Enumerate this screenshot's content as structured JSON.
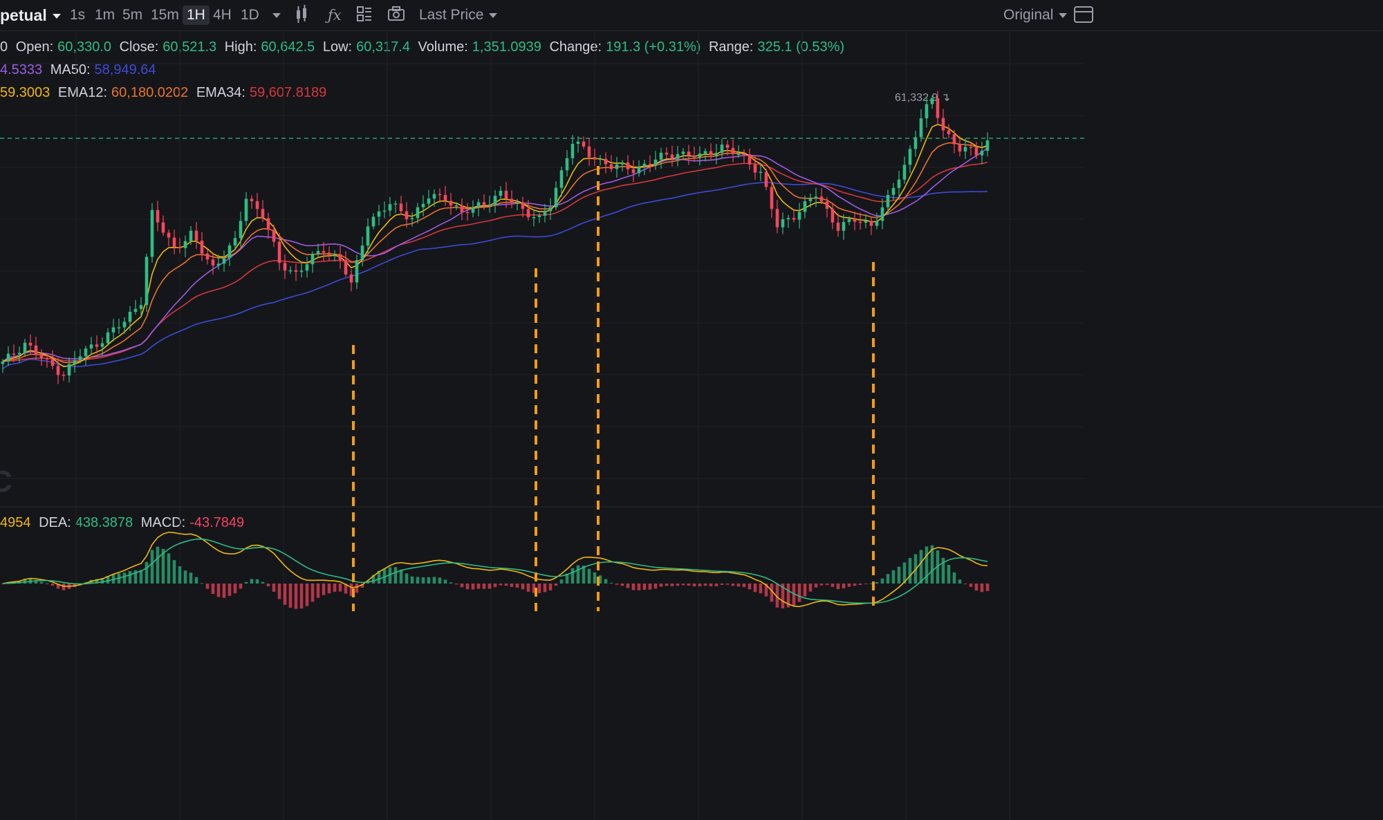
{
  "toolbar": {
    "symbol": "petual",
    "intervals": [
      "1s",
      "1m",
      "5m",
      "15m",
      "1H",
      "4H",
      "1D"
    ],
    "active_interval": "1H",
    "price_type": "Last Price",
    "view_mode": "Original"
  },
  "ohlc": {
    "open_label": "Open:",
    "open": "60,330.0",
    "close_label": "Close:",
    "close": "60,521.3",
    "high_label": "High:",
    "high": "60,642.5",
    "low_label": "Low:",
    "low": "60,317.4",
    "volume_label": "Volume:",
    "volume": "1,351.0939",
    "change_label": "Change:",
    "change": "191.3 (+0.31%)",
    "range_label": "Range:",
    "range": "325.1 (0.53%)",
    "left_cut": "0"
  },
  "ma_legend": {
    "ma_prev": "4.5333",
    "ma50_label": "MA50:",
    "ma50": "58,949.64"
  },
  "ema_legend": {
    "ema_prev": "59.3003",
    "ema12_label": "EMA12:",
    "ema12": "60,180.0202",
    "ema34_label": "EMA34:",
    "ema34": "59,607.8189"
  },
  "macd_legend": {
    "dif_prev": "4954",
    "dea_label": "DEA:",
    "dea": "438.3878",
    "macd_label": "MACD:",
    "macd": "-43.7849"
  },
  "high_marker": "61,332.9",
  "watermark": "C",
  "colors": {
    "up": "#2ebd85",
    "down": "#f6465d",
    "ma_fast": "#f0b90b",
    "ma50": "#3e4bd6",
    "ema12": "#e9742f",
    "ema34": "#d6383c",
    "ma_mid": "#9d5ce6",
    "dashed": "#f39c12"
  },
  "chart_data": {
    "type": "candlestick",
    "anchors": [
      [
        0,
        59180
      ],
      [
        4,
        59350
      ],
      [
        8,
        59180
      ],
      [
        11,
        59100
      ],
      [
        14,
        59250
      ],
      [
        18,
        59380
      ],
      [
        22,
        59520
      ],
      [
        25,
        59700
      ],
      [
        27,
        60400
      ],
      [
        31,
        60130
      ],
      [
        34,
        60230
      ],
      [
        38,
        59970
      ],
      [
        42,
        60170
      ],
      [
        44,
        60550
      ],
      [
        47,
        60400
      ],
      [
        50,
        60000
      ],
      [
        53,
        59920
      ],
      [
        58,
        60120
      ],
      [
        61,
        60030
      ],
      [
        63,
        59820
      ],
      [
        66,
        60340
      ],
      [
        70,
        60480
      ],
      [
        74,
        60380
      ],
      [
        77,
        60540
      ],
      [
        80,
        60550
      ],
      [
        83,
        60400
      ],
      [
        86,
        60480
      ],
      [
        90,
        60560
      ],
      [
        94,
        60450
      ],
      [
        97,
        60350
      ],
      [
        99,
        60480
      ],
      [
        102,
        60890
      ],
      [
        103,
        61000
      ],
      [
        106,
        60890
      ],
      [
        110,
        60800
      ],
      [
        114,
        60770
      ],
      [
        118,
        60850
      ],
      [
        122,
        60910
      ],
      [
        126,
        60870
      ],
      [
        130,
        60960
      ],
      [
        134,
        60860
      ],
      [
        137,
        60750
      ],
      [
        140,
        60300
      ],
      [
        143,
        60400
      ],
      [
        147,
        60560
      ],
      [
        151,
        60300
      ],
      [
        154,
        60350
      ],
      [
        157,
        60320
      ],
      [
        160,
        60520
      ],
      [
        163,
        60800
      ],
      [
        166,
        61200
      ],
      [
        168,
        61330
      ],
      [
        170,
        61100
      ],
      [
        173,
        60940
      ],
      [
        176,
        60900
      ],
      [
        178,
        61000
      ]
    ],
    "overlay_series": [
      "MA50",
      "EMA12",
      "EMA34"
    ],
    "dashed_markers": [
      511,
      775,
      865,
      1263
    ]
  }
}
